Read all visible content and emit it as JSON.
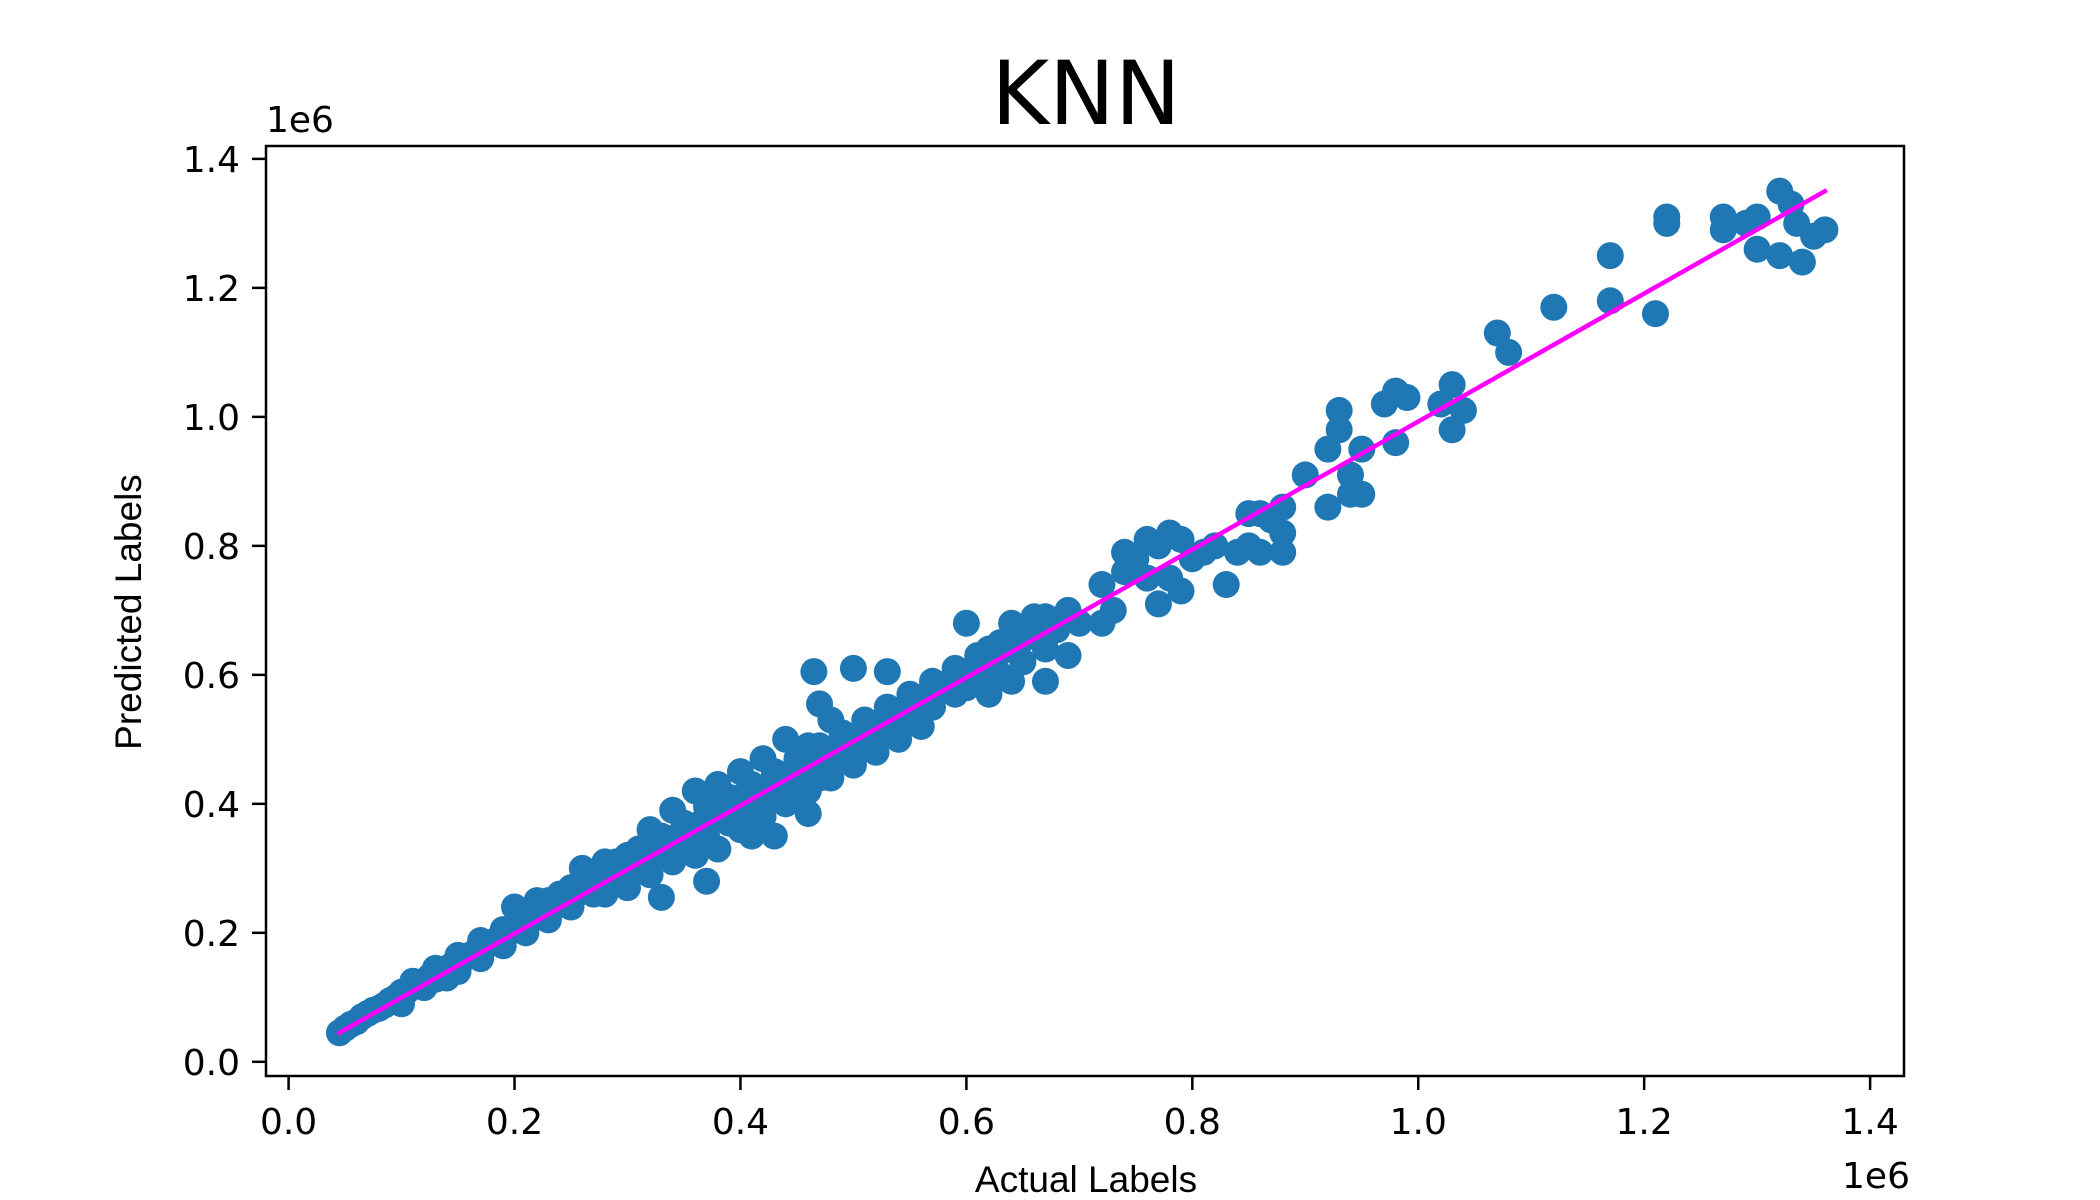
{
  "chart_data": {
    "type": "scatter",
    "title": "KNN",
    "xlabel": "Actual Labels",
    "ylabel": "Predicted Labels",
    "x_offset_text": "1e6",
    "y_offset_text": "1e6",
    "xlim": [
      -0.02,
      1.43
    ],
    "ylim": [
      -0.022,
      1.42
    ],
    "x_ticks": [
      0.0,
      0.2,
      0.4,
      0.6,
      0.8,
      1.0,
      1.2,
      1.4
    ],
    "y_ticks": [
      0.0,
      0.2,
      0.4,
      0.6,
      0.8,
      1.0,
      1.2,
      1.4
    ],
    "x_tick_labels": [
      "0.0",
      "0.2",
      "0.4",
      "0.6",
      "0.8",
      "1.0",
      "1.2",
      "1.4"
    ],
    "y_tick_labels": [
      "0.0",
      "0.2",
      "0.4",
      "0.6",
      "0.8",
      "1.0",
      "1.2",
      "1.4"
    ],
    "grid": false,
    "scatter_color": "#1f77b4",
    "line_color": "#ff00ff",
    "series": [
      {
        "type": "scatter",
        "points": [
          [
            0.045,
            0.045
          ],
          [
            0.05,
            0.052
          ],
          [
            0.055,
            0.058
          ],
          [
            0.06,
            0.062
          ],
          [
            0.065,
            0.07
          ],
          [
            0.07,
            0.075
          ],
          [
            0.075,
            0.08
          ],
          [
            0.08,
            0.083
          ],
          [
            0.085,
            0.088
          ],
          [
            0.09,
            0.095
          ],
          [
            0.095,
            0.1
          ],
          [
            0.1,
            0.108
          ],
          [
            0.105,
            0.11
          ],
          [
            0.11,
            0.118
          ],
          [
            0.115,
            0.12
          ],
          [
            0.12,
            0.125
          ],
          [
            0.125,
            0.132
          ],
          [
            0.13,
            0.128
          ],
          [
            0.135,
            0.14
          ],
          [
            0.14,
            0.145
          ],
          [
            0.145,
            0.15
          ],
          [
            0.15,
            0.155
          ],
          [
            0.155,
            0.16
          ],
          [
            0.16,
            0.165
          ],
          [
            0.165,
            0.17
          ],
          [
            0.17,
            0.178
          ],
          [
            0.175,
            0.18
          ],
          [
            0.18,
            0.185
          ],
          [
            0.185,
            0.19
          ],
          [
            0.19,
            0.195
          ],
          [
            0.195,
            0.2
          ],
          [
            0.2,
            0.205
          ],
          [
            0.205,
            0.21
          ],
          [
            0.21,
            0.215
          ],
          [
            0.215,
            0.22
          ],
          [
            0.22,
            0.228
          ],
          [
            0.225,
            0.23
          ],
          [
            0.23,
            0.235
          ],
          [
            0.235,
            0.24
          ],
          [
            0.24,
            0.245
          ],
          [
            0.245,
            0.25
          ],
          [
            0.25,
            0.255
          ],
          [
            0.255,
            0.26
          ],
          [
            0.26,
            0.265
          ],
          [
            0.265,
            0.27
          ],
          [
            0.27,
            0.275
          ],
          [
            0.275,
            0.28
          ],
          [
            0.28,
            0.285
          ],
          [
            0.285,
            0.29
          ],
          [
            0.29,
            0.295
          ],
          [
            0.295,
            0.3
          ],
          [
            0.3,
            0.305
          ],
          [
            0.305,
            0.31
          ],
          [
            0.31,
            0.315
          ],
          [
            0.315,
            0.32
          ],
          [
            0.32,
            0.325
          ],
          [
            0.325,
            0.33
          ],
          [
            0.33,
            0.335
          ],
          [
            0.335,
            0.34
          ],
          [
            0.34,
            0.345
          ],
          [
            0.345,
            0.35
          ],
          [
            0.35,
            0.355
          ],
          [
            0.355,
            0.36
          ],
          [
            0.36,
            0.365
          ],
          [
            0.365,
            0.37
          ],
          [
            0.37,
            0.375
          ],
          [
            0.375,
            0.38
          ],
          [
            0.38,
            0.385
          ],
          [
            0.385,
            0.39
          ],
          [
            0.39,
            0.395
          ],
          [
            0.4,
            0.41
          ],
          [
            0.41,
            0.415
          ],
          [
            0.42,
            0.425
          ],
          [
            0.43,
            0.435
          ],
          [
            0.44,
            0.445
          ],
          [
            0.45,
            0.455
          ],
          [
            0.46,
            0.465
          ],
          [
            0.47,
            0.475
          ],
          [
            0.48,
            0.485
          ],
          [
            0.49,
            0.495
          ],
          [
            0.5,
            0.505
          ],
          [
            0.51,
            0.515
          ],
          [
            0.52,
            0.525
          ],
          [
            0.53,
            0.535
          ],
          [
            0.54,
            0.545
          ],
          [
            0.55,
            0.555
          ],
          [
            0.56,
            0.565
          ],
          [
            0.57,
            0.575
          ],
          [
            0.58,
            0.585
          ],
          [
            0.59,
            0.595
          ],
          [
            0.6,
            0.605
          ],
          [
            0.61,
            0.615
          ],
          [
            0.62,
            0.625
          ],
          [
            0.63,
            0.635
          ],
          [
            0.64,
            0.645
          ],
          [
            0.65,
            0.655
          ],
          [
            0.66,
            0.665
          ],
          [
            0.67,
            0.675
          ],
          [
            0.68,
            0.685
          ],
          [
            0.1,
            0.09
          ],
          [
            0.12,
            0.115
          ],
          [
            0.14,
            0.13
          ],
          [
            0.15,
            0.14
          ],
          [
            0.17,
            0.16
          ],
          [
            0.19,
            0.18
          ],
          [
            0.21,
            0.2
          ],
          [
            0.23,
            0.22
          ],
          [
            0.25,
            0.24
          ],
          [
            0.27,
            0.26
          ],
          [
            0.29,
            0.28
          ],
          [
            0.31,
            0.3
          ],
          [
            0.33,
            0.32
          ],
          [
            0.35,
            0.33
          ],
          [
            0.37,
            0.35
          ],
          [
            0.39,
            0.37
          ],
          [
            0.41,
            0.39
          ],
          [
            0.43,
            0.41
          ],
          [
            0.45,
            0.42
          ],
          [
            0.47,
            0.44
          ],
          [
            0.49,
            0.47
          ],
          [
            0.51,
            0.49
          ],
          [
            0.53,
            0.51
          ],
          [
            0.55,
            0.53
          ],
          [
            0.57,
            0.55
          ],
          [
            0.59,
            0.57
          ],
          [
            0.61,
            0.59
          ],
          [
            0.63,
            0.6
          ],
          [
            0.65,
            0.62
          ],
          [
            0.67,
            0.64
          ],
          [
            0.11,
            0.125
          ],
          [
            0.13,
            0.145
          ],
          [
            0.15,
            0.165
          ],
          [
            0.17,
            0.188
          ],
          [
            0.19,
            0.205
          ],
          [
            0.21,
            0.228
          ],
          [
            0.23,
            0.25
          ],
          [
            0.25,
            0.27
          ],
          [
            0.27,
            0.29
          ],
          [
            0.29,
            0.31
          ],
          [
            0.31,
            0.33
          ],
          [
            0.33,
            0.35
          ],
          [
            0.35,
            0.37
          ],
          [
            0.37,
            0.395
          ],
          [
            0.39,
            0.41
          ],
          [
            0.41,
            0.43
          ],
          [
            0.43,
            0.45
          ],
          [
            0.45,
            0.47
          ],
          [
            0.47,
            0.49
          ],
          [
            0.49,
            0.51
          ],
          [
            0.51,
            0.53
          ],
          [
            0.53,
            0.55
          ],
          [
            0.55,
            0.57
          ],
          [
            0.57,
            0.59
          ],
          [
            0.59,
            0.61
          ],
          [
            0.61,
            0.63
          ],
          [
            0.63,
            0.65
          ],
          [
            0.65,
            0.67
          ],
          [
            0.67,
            0.69
          ],
          [
            0.69,
            0.7
          ],
          [
            0.2,
            0.24
          ],
          [
            0.22,
            0.25
          ],
          [
            0.24,
            0.26
          ],
          [
            0.26,
            0.3
          ],
          [
            0.28,
            0.31
          ],
          [
            0.3,
            0.32
          ],
          [
            0.32,
            0.36
          ],
          [
            0.34,
            0.39
          ],
          [
            0.36,
            0.42
          ],
          [
            0.38,
            0.43
          ],
          [
            0.4,
            0.45
          ],
          [
            0.42,
            0.47
          ],
          [
            0.44,
            0.5
          ],
          [
            0.46,
            0.49
          ],
          [
            0.48,
            0.53
          ],
          [
            0.28,
            0.26
          ],
          [
            0.3,
            0.27
          ],
          [
            0.32,
            0.29
          ],
          [
            0.34,
            0.31
          ],
          [
            0.36,
            0.32
          ],
          [
            0.38,
            0.33
          ],
          [
            0.4,
            0.36
          ],
          [
            0.42,
            0.38
          ],
          [
            0.44,
            0.4
          ],
          [
            0.46,
            0.42
          ],
          [
            0.48,
            0.44
          ],
          [
            0.5,
            0.46
          ],
          [
            0.52,
            0.48
          ],
          [
            0.54,
            0.5
          ],
          [
            0.56,
            0.52
          ],
          [
            0.465,
            0.605
          ],
          [
            0.5,
            0.61
          ],
          [
            0.53,
            0.605
          ],
          [
            0.47,
            0.555
          ],
          [
            0.37,
            0.28
          ],
          [
            0.41,
            0.35
          ],
          [
            0.43,
            0.35
          ],
          [
            0.46,
            0.385
          ],
          [
            0.33,
            0.255
          ],
          [
            0.6,
            0.68
          ],
          [
            0.62,
            0.64
          ],
          [
            0.64,
            0.68
          ],
          [
            0.66,
            0.69
          ],
          [
            0.68,
            0.67
          ],
          [
            0.6,
            0.58
          ],
          [
            0.62,
            0.57
          ],
          [
            0.64,
            0.59
          ],
          [
            0.67,
            0.59
          ],
          [
            0.69,
            0.63
          ],
          [
            0.7,
            0.68
          ],
          [
            0.72,
            0.68
          ],
          [
            0.72,
            0.74
          ],
          [
            0.73,
            0.7
          ],
          [
            0.74,
            0.79
          ],
          [
            0.75,
            0.78
          ],
          [
            0.76,
            0.81
          ],
          [
            0.77,
            0.8
          ],
          [
            0.78,
            0.82
          ],
          [
            0.79,
            0.81
          ],
          [
            0.74,
            0.76
          ],
          [
            0.76,
            0.75
          ],
          [
            0.78,
            0.75
          ],
          [
            0.79,
            0.73
          ],
          [
            0.77,
            0.71
          ],
          [
            0.8,
            0.78
          ],
          [
            0.81,
            0.79
          ],
          [
            0.82,
            0.8
          ],
          [
            0.83,
            0.74
          ],
          [
            0.84,
            0.79
          ],
          [
            0.85,
            0.85
          ],
          [
            0.86,
            0.85
          ],
          [
            0.87,
            0.84
          ],
          [
            0.88,
            0.86
          ],
          [
            0.88,
            0.82
          ],
          [
            0.85,
            0.8
          ],
          [
            0.86,
            0.79
          ],
          [
            0.88,
            0.79
          ],
          [
            0.9,
            0.91
          ],
          [
            0.92,
            0.86
          ],
          [
            0.93,
            1.01
          ],
          [
            0.93,
            0.98
          ],
          [
            0.92,
            0.95
          ],
          [
            0.94,
            0.91
          ],
          [
            0.94,
            0.88
          ],
          [
            0.95,
            0.88
          ],
          [
            0.95,
            0.95
          ],
          [
            0.97,
            1.02
          ],
          [
            0.98,
            1.04
          ],
          [
            0.99,
            1.03
          ],
          [
            0.98,
            0.96
          ],
          [
            1.02,
            1.02
          ],
          [
            1.03,
            0.98
          ],
          [
            1.04,
            1.01
          ],
          [
            1.03,
            1.05
          ],
          [
            1.07,
            1.13
          ],
          [
            1.08,
            1.1
          ],
          [
            1.12,
            1.17
          ],
          [
            1.17,
            1.25
          ],
          [
            1.17,
            1.18
          ],
          [
            1.21,
            1.16
          ],
          [
            1.22,
            1.3
          ],
          [
            1.22,
            1.31
          ],
          [
            1.27,
            1.29
          ],
          [
            1.27,
            1.31
          ],
          [
            1.29,
            1.3
          ],
          [
            1.3,
            1.31
          ],
          [
            1.3,
            1.26
          ],
          [
            1.32,
            1.25
          ],
          [
            1.32,
            1.35
          ],
          [
            1.33,
            1.33
          ],
          [
            1.34,
            1.24
          ],
          [
            1.35,
            1.28
          ],
          [
            1.36,
            1.29
          ],
          [
            1.335,
            1.3
          ]
        ]
      },
      {
        "type": "line",
        "points": [
          [
            0.045,
            0.045
          ],
          [
            1.36,
            1.35
          ]
        ]
      }
    ]
  }
}
